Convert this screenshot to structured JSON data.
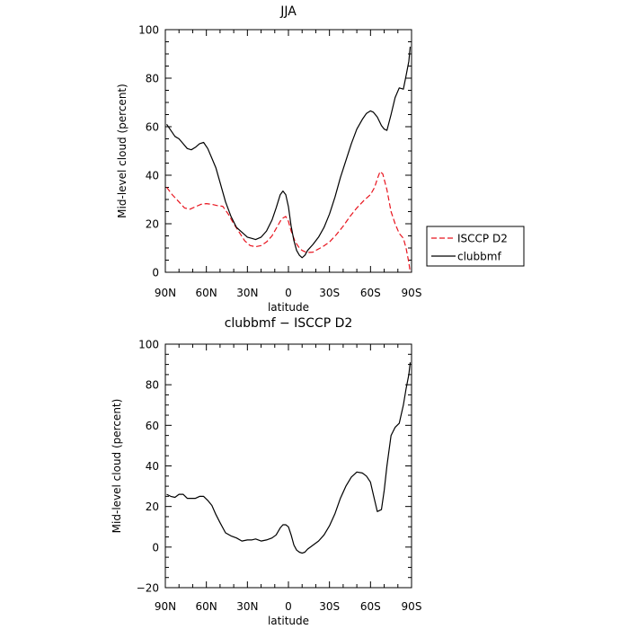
{
  "chart_data": [
    {
      "type": "line",
      "title": "JJA",
      "xlabel": "latitude",
      "ylabel": "Mid-level cloud (percent)",
      "xlim": [
        90,
        -90
      ],
      "ylim": [
        0,
        100
      ],
      "xticks": [
        90,
        60,
        30,
        0,
        -30,
        -60,
        -90
      ],
      "xtick_labels": [
        "90N",
        "60N",
        "30N",
        "0",
        "30S",
        "60S",
        "90S"
      ],
      "yticks": [
        0,
        20,
        40,
        60,
        80,
        100
      ],
      "ytick_labels": [
        "0",
        "20",
        "40",
        "60",
        "80",
        "100"
      ],
      "legend_placement": "right",
      "series": [
        {
          "name": "ISCCP D2",
          "color": "#e8141e",
          "dash": "dashed",
          "x": [
            89,
            85,
            80,
            76,
            72,
            68,
            64,
            60,
            56,
            52,
            48,
            44,
            40,
            36,
            32,
            28,
            24,
            20,
            16,
            12,
            8,
            5,
            2,
            0,
            -2,
            -5,
            -8,
            -10,
            -12,
            -15,
            -18,
            -20,
            -25,
            -30,
            -35,
            -40,
            -45,
            -50,
            -55,
            -60,
            -63,
            -65,
            -67,
            -69,
            -72,
            -75,
            -78,
            -81,
            -84,
            -86,
            -88,
            -89
          ],
          "y": [
            35,
            32,
            29,
            26.5,
            26,
            27,
            28,
            28.3,
            28,
            27.5,
            27.2,
            24,
            20,
            16.5,
            13,
            11,
            10.5,
            11,
            12.5,
            15,
            19,
            22,
            23,
            21,
            17,
            12.5,
            10,
            9,
            8.5,
            8.2,
            8.3,
            9,
            10.5,
            12.5,
            15.5,
            19,
            23,
            26.5,
            29.5,
            32,
            35,
            38.5,
            41.5,
            40.5,
            34,
            25,
            20,
            16,
            14,
            10,
            4,
            0
          ]
        },
        {
          "name": "clubbmf",
          "color": "#000000",
          "dash": "solid",
          "x": [
            89,
            86,
            83,
            80,
            77,
            74,
            71,
            68,
            65,
            62,
            59,
            56,
            53,
            50,
            46,
            42,
            38,
            34,
            30,
            27,
            24,
            20,
            16,
            12,
            9,
            6,
            4,
            2,
            0,
            -2,
            -4,
            -6,
            -8,
            -10,
            -12,
            -14,
            -18,
            -22,
            -26,
            -30,
            -34,
            -38,
            -42,
            -46,
            -50,
            -54,
            -57,
            -60,
            -62,
            -65,
            -68,
            -70,
            -72,
            -75,
            -78,
            -81,
            -84,
            -86,
            -88,
            -89
          ],
          "y": [
            61,
            58.5,
            56,
            55,
            53,
            51,
            50.5,
            51.5,
            53,
            53.5,
            51,
            47,
            43,
            37,
            29,
            23,
            18.5,
            16.5,
            14.5,
            14,
            13.5,
            14.5,
            17,
            21.5,
            26.5,
            32,
            33.5,
            32,
            27,
            19,
            13,
            9,
            7,
            6,
            7,
            9,
            11.5,
            14.5,
            18.5,
            24,
            31,
            39,
            46,
            53,
            59,
            63,
            65.5,
            66.5,
            66,
            64,
            60.5,
            59,
            58.5,
            65,
            72,
            76,
            75.5,
            81,
            87,
            93
          ]
        }
      ]
    },
    {
      "type": "line",
      "title": "clubbmf − ISCCP D2",
      "xlabel": "latitude",
      "ylabel": "Mid-level cloud (percent)",
      "xlim": [
        90,
        -90
      ],
      "ylim": [
        -20,
        100
      ],
      "xticks": [
        90,
        60,
        30,
        0,
        -30,
        -60,
        -90
      ],
      "xtick_labels": [
        "90N",
        "60N",
        "30N",
        "0",
        "30S",
        "60S",
        "90S"
      ],
      "yticks": [
        -20,
        0,
        20,
        40,
        60,
        80,
        100
      ],
      "ytick_labels": [
        "−20",
        "0",
        "20",
        "40",
        "60",
        "80",
        "100"
      ],
      "series": [
        {
          "color": "#000000",
          "dash": "solid",
          "x": [
            89,
            86,
            83,
            80,
            77,
            74,
            71,
            68,
            65,
            62,
            59,
            56,
            53,
            50,
            46,
            42,
            38,
            34,
            30,
            27,
            24,
            20,
            16,
            12,
            9,
            6,
            4,
            2,
            0,
            -2,
            -4,
            -6,
            -8,
            -10,
            -12,
            -14,
            -18,
            -22,
            -26,
            -30,
            -34,
            -38,
            -42,
            -46,
            -50,
            -54,
            -57,
            -60,
            -62,
            -65,
            -68,
            -70,
            -72,
            -75,
            -78,
            -81,
            -84,
            -86,
            -88,
            -89
          ],
          "y": [
            26,
            25,
            24.5,
            26,
            26,
            24,
            24,
            24,
            25,
            25,
            23,
            20.5,
            16,
            12,
            7,
            5.5,
            4.5,
            3,
            3.5,
            3.5,
            4,
            3,
            3.5,
            4.5,
            6,
            9.5,
            11,
            11,
            10,
            6,
            1,
            -1.5,
            -2.5,
            -3,
            -2.5,
            -1,
            1,
            3,
            6,
            10.5,
            16.5,
            24,
            30,
            34.5,
            37,
            36.5,
            35,
            32,
            26,
            17.5,
            18.5,
            28,
            40,
            55,
            59,
            61,
            70,
            78,
            85,
            91
          ]
        }
      ]
    }
  ]
}
